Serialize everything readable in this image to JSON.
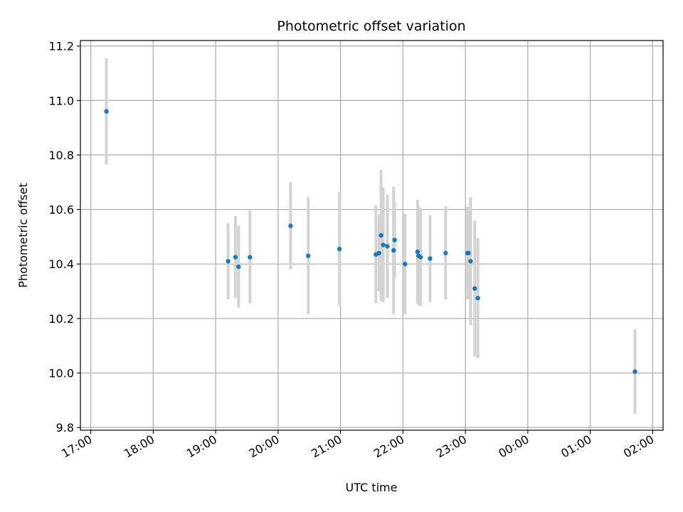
{
  "chart_data": {
    "type": "scatter",
    "title": "Photometric offset variation",
    "xlabel": "UTC time",
    "ylabel": "Photometric offset",
    "x_axis": {
      "kind": "time",
      "range": [
        "16:50",
        "02:10"
      ],
      "tick_labels": [
        "17:00",
        "18:00",
        "19:00",
        "20:00",
        "21:00",
        "22:00",
        "23:00",
        "00:00",
        "01:00",
        "02:00"
      ]
    },
    "y_axis": {
      "range": [
        9.79,
        11.22
      ],
      "ticks": [
        9.8,
        10.0,
        10.2,
        10.4,
        10.6,
        10.8,
        11.0,
        11.2
      ],
      "tick_labels": [
        "9.8",
        "10.0",
        "10.2",
        "10.4",
        "10.6",
        "10.8",
        "11.0",
        "11.2"
      ]
    },
    "grid": true,
    "colors": {
      "marker": "#1f77b4",
      "errorbar": "#d3d3d3",
      "grid": "#b0b0b0"
    },
    "points": [
      {
        "time": "17:15",
        "y": 10.96,
        "err": 0.195
      },
      {
        "time": "19:12",
        "y": 10.41,
        "err": 0.14
      },
      {
        "time": "19:19",
        "y": 10.425,
        "err": 0.15
      },
      {
        "time": "19:22",
        "y": 10.39,
        "err": 0.15
      },
      {
        "time": "19:33",
        "y": 10.425,
        "err": 0.17
      },
      {
        "time": "20:12",
        "y": 10.54,
        "err": 0.16
      },
      {
        "time": "20:29",
        "y": 10.43,
        "err": 0.215
      },
      {
        "time": "20:59",
        "y": 10.455,
        "err": 0.21
      },
      {
        "time": "21:34",
        "y": 10.435,
        "err": 0.18
      },
      {
        "time": "21:37",
        "y": 10.44,
        "err": 0.14
      },
      {
        "time": "21:39",
        "y": 10.505,
        "err": 0.24
      },
      {
        "time": "21:41",
        "y": 10.47,
        "err": 0.21
      },
      {
        "time": "21:45",
        "y": 10.465,
        "err": 0.19
      },
      {
        "time": "21:51",
        "y": 10.45,
        "err": 0.235
      },
      {
        "time": "21:52",
        "y": 10.488,
        "err": 0.14
      },
      {
        "time": "22:02",
        "y": 10.4,
        "err": 0.185
      },
      {
        "time": "22:14",
        "y": 10.445,
        "err": 0.19
      },
      {
        "time": "22:15",
        "y": 10.43,
        "err": 0.18
      },
      {
        "time": "22:17",
        "y": 10.425,
        "err": 0.18
      },
      {
        "time": "22:26",
        "y": 10.42,
        "err": 0.16
      },
      {
        "time": "22:41",
        "y": 10.44,
        "err": 0.17
      },
      {
        "time": "23:02",
        "y": 10.44,
        "err": 0.17
      },
      {
        "time": "23:03",
        "y": 10.44,
        "err": 0.17
      },
      {
        "time": "23:05",
        "y": 10.41,
        "err": 0.235
      },
      {
        "time": "23:09",
        "y": 10.31,
        "err": 0.25
      },
      {
        "time": "23:12",
        "y": 10.275,
        "err": 0.22
      },
      {
        "time": "01:43",
        "y": 10.005,
        "err": 0.155
      }
    ]
  }
}
